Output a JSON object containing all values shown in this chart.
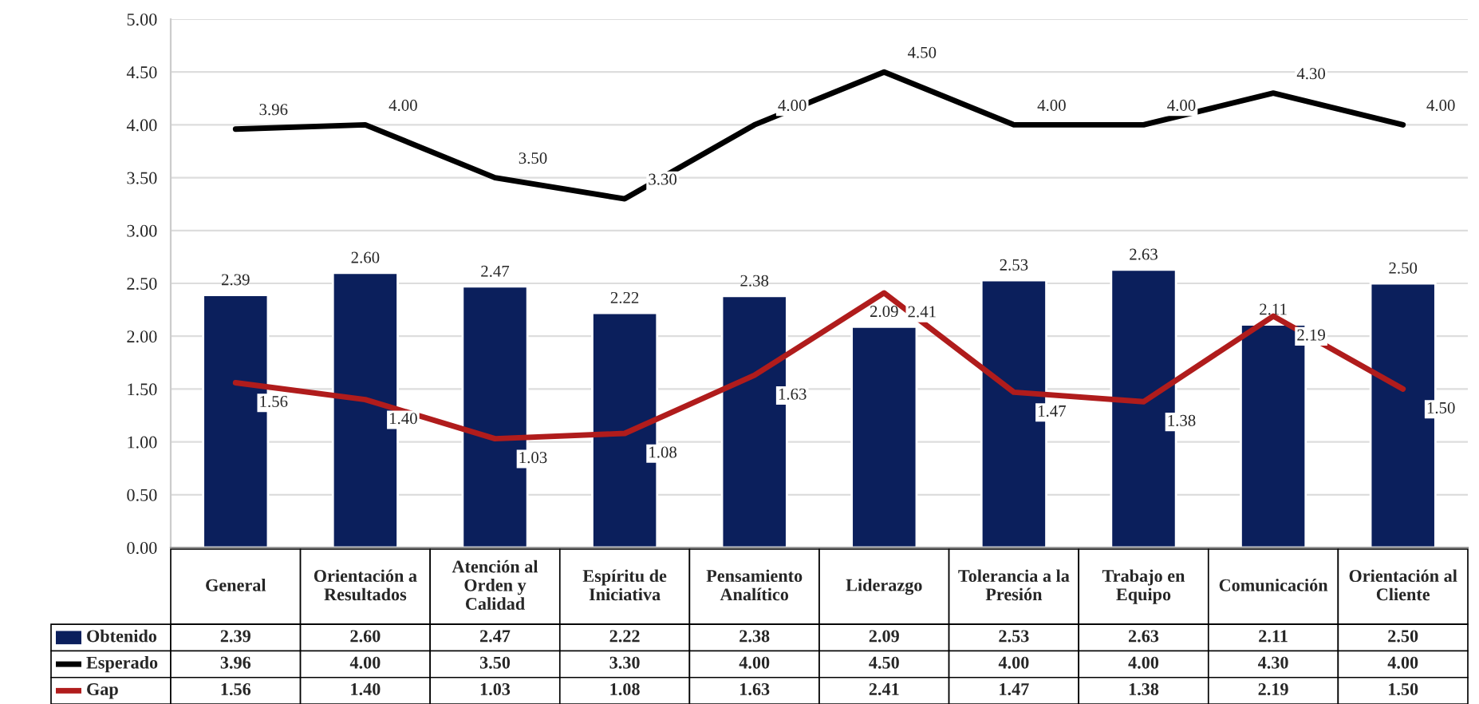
{
  "chart_data": {
    "type": "bar",
    "categories": [
      "General",
      "Orientación a\nResultados",
      "Atención al\nOrden y\nCalidad",
      "Espíritu de\nIniciativa",
      "Pensamiento\nAnalítico",
      "Liderazgo",
      "Tolerancia a la\nPresión",
      "Trabajo en\nEquipo",
      "Comunicación",
      "Orientación al\nCliente"
    ],
    "series": [
      {
        "name": "Obtenido",
        "color": "#0b1f5c",
        "values": [
          2.39,
          2.6,
          2.47,
          2.22,
          2.38,
          2.09,
          2.53,
          2.63,
          2.11,
          2.5
        ],
        "value_labels": [
          "2.39",
          "2.60",
          "2.47",
          "2.22",
          "2.38",
          "2.09",
          "2.53",
          "2.63",
          "2.11",
          "2.50"
        ]
      },
      {
        "name": "Esperado",
        "type": "line",
        "color": "#000000",
        "values": [
          3.96,
          4.0,
          3.5,
          3.3,
          4.0,
          4.5,
          4.0,
          4.0,
          4.3,
          4.0
        ],
        "value_labels": [
          "3.96",
          "4.00",
          "3.50",
          "3.30",
          "4.00",
          "4.50",
          "4.00",
          "4.00",
          "4.30",
          "4.00"
        ]
      },
      {
        "name": "Gap",
        "type": "line",
        "color": "#b01c1c",
        "values": [
          1.56,
          1.4,
          1.03,
          1.08,
          1.63,
          2.41,
          1.47,
          1.38,
          2.19,
          1.5
        ],
        "value_labels": [
          "1.56",
          "1.40",
          "1.03",
          "1.08",
          "1.63",
          "2.41",
          "1.47",
          "1.38",
          "2.19",
          "1.50"
        ]
      }
    ],
    "ylim": [
      0,
      5
    ],
    "yticks": [
      {
        "value": 0,
        "label": "0.00"
      },
      {
        "value": 0.5,
        "label": "0.50"
      },
      {
        "value": 1,
        "label": "1.00"
      },
      {
        "value": 1.5,
        "label": "1.50"
      },
      {
        "value": 2,
        "label": "2.00"
      },
      {
        "value": 2.5,
        "label": "2.50"
      },
      {
        "value": 3,
        "label": "3.00"
      },
      {
        "value": 3.5,
        "label": "3.50"
      },
      {
        "value": 4,
        "label": "4.00"
      },
      {
        "value": 4.5,
        "label": "4.50"
      },
      {
        "value": 5,
        "label": "5.00"
      }
    ],
    "grid": "y",
    "legend": "bottom",
    "line_style": "solid"
  }
}
